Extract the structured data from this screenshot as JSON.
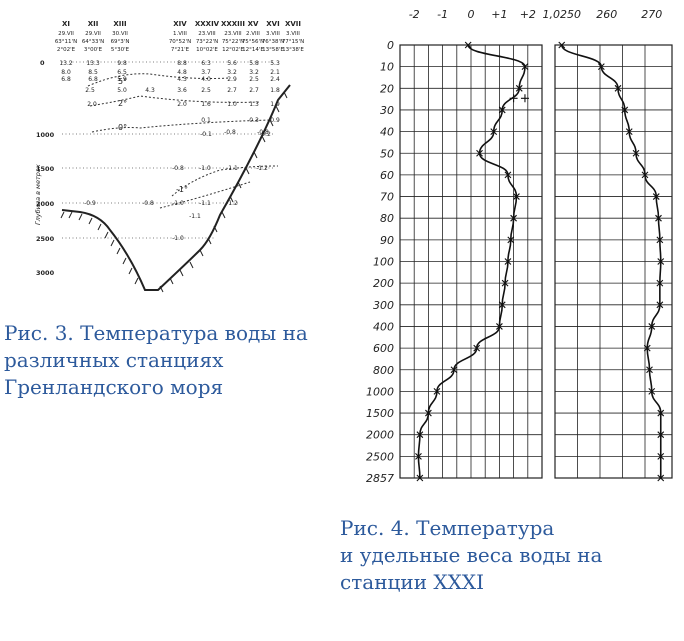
{
  "figure3": {
    "caption_lines": [
      "Рис. 3. Температура воды на",
      "различных станциях",
      "Гренландского моря"
    ],
    "y_axis_label": "Глубина в метрах",
    "depth_ticks": [
      "0",
      "1000",
      "1500",
      "2000",
      "2500",
      "3000"
    ],
    "stations": [
      {
        "num": "XI",
        "date": "29.VII",
        "lat": "63°11'N",
        "lon": "2°02'E"
      },
      {
        "num": "XII",
        "date": "29.VII",
        "lat": "64°33'N",
        "lon": "3°00'E"
      },
      {
        "num": "XIII",
        "date": "30.VII",
        "lat": "69°3'N",
        "lon": "5°30'E"
      },
      {
        "num": "XIV",
        "date": "1.VIII",
        "lat": "70°52'N",
        "lon": "7°21'E"
      },
      {
        "num": "XXXIV",
        "date": "23.VIII",
        "lat": "73°22'N",
        "lon": "10°02'E"
      },
      {
        "num": "XXXIII",
        "date": "23.VIII",
        "lat": "75°22'N",
        "lon": "12°02'E"
      },
      {
        "num": "XV",
        "date": "2.VIII",
        "lat": "75°56'N",
        "lon": "12°14'E"
      },
      {
        "num": "XVI",
        "date": "3.VIII",
        "lat": "76°38'N",
        "lon": "13°58'E"
      },
      {
        "num": "XVII",
        "date": "3.VIII",
        "lat": "77°15'N",
        "lon": "13°38'E"
      }
    ],
    "isotherm_labels": [
      "5°",
      "2°",
      "0°",
      "-1°"
    ],
    "value_rows": [
      [
        "13.2",
        "13.3",
        "9.8",
        "8.8",
        "6.3",
        "5.6",
        "5.8",
        "5.3"
      ],
      [
        "8.0",
        "8.5",
        "6.5",
        "4.8",
        "3.7",
        "3.2",
        "3.2",
        "2.1"
      ],
      [
        "6.8",
        "6.8",
        "5.9",
        "4.3",
        "4.0",
        "2.9",
        "2.5",
        "2.4"
      ],
      [
        "2.5",
        "5.0",
        "4.3",
        "3.6",
        "2.5",
        "2.7",
        "2.7",
        "1.8"
      ],
      [
        "2.0",
        "2.0",
        "1.6",
        "1.0",
        "1.3",
        "1.9"
      ],
      [
        "0.1",
        "0.3",
        "0.9"
      ],
      [
        "-0.1",
        "-0.2"
      ],
      [
        "-0.8",
        "-0.8"
      ],
      [
        "-0.8",
        "-1.0",
        "-1.1",
        "-1.2"
      ],
      [
        "-0.9",
        "-0.8",
        "-1.0",
        "-1.1",
        "-1.2"
      ],
      [
        "-1.1"
      ],
      [
        "-1.0"
      ]
    ]
  },
  "figure4": {
    "caption_lines": [
      "Рис. 4. Температура",
      "и удельные веса воды на",
      "станции XXXI"
    ],
    "temp_axis_labels": [
      "-2",
      "-1",
      "0",
      "+1",
      "+2"
    ],
    "density_axis_labels": [
      "1,0250",
      "260",
      "270"
    ],
    "depth_labels": [
      "0",
      "10",
      "20",
      "30",
      "40",
      "50",
      "60",
      "70",
      "80",
      "90",
      "100",
      "200",
      "300",
      "400",
      "600",
      "800",
      "1000",
      "1500",
      "2000",
      "2500",
      "2857"
    ]
  },
  "chart_data": {
    "type": "line",
    "title": "",
    "xlabel": "",
    "ylabel": "",
    "panels": [
      {
        "x_ticks": [
          -2,
          -1,
          0,
          1,
          2
        ],
        "x_range": [
          -2.5,
          2.5
        ],
        "y_categories": [
          "0",
          "10",
          "20",
          "30",
          "40",
          "50",
          "60",
          "70",
          "80",
          "90",
          "100",
          "200",
          "300",
          "400",
          "600",
          "800",
          "1000",
          "1500",
          "2000",
          "2500",
          "2857"
        ],
        "series": [
          {
            "x": [
              -0.1,
              1.9,
              1.7,
              1.1,
              0.8,
              0.3,
              1.3,
              1.6,
              1.5,
              1.4,
              1.3,
              1.2,
              1.1,
              1.0,
              0.2,
              -0.6,
              -1.2,
              -1.5,
              -1.8,
              -1.85,
              -1.8
            ]
          }
        ],
        "extra_points": [
          {
            "x": 1.5,
            "y": "20"
          },
          {
            "x": 1.9,
            "y": "20"
          }
        ]
      },
      {
        "x_ticks": [
          1.025,
          1.026,
          1.027
        ],
        "x_range": [
          1.02485,
          1.02745
        ],
        "y_categories": [
          "0",
          "10",
          "20",
          "30",
          "40",
          "50",
          "60",
          "70",
          "80",
          "90",
          "100",
          "200",
          "300",
          "400",
          "600",
          "800",
          "1000",
          "1500",
          "2000",
          "2500",
          "2857"
        ],
        "series": [
          {
            "x": [
              1.025,
              1.02588,
              1.02625,
              1.0264,
              1.0265,
              1.02665,
              1.02685,
              1.0271,
              1.02715,
              1.02718,
              1.0272,
              1.02718,
              1.02718,
              1.027,
              1.0269,
              1.02695,
              1.027,
              1.0272,
              1.0272,
              1.0272,
              1.0272
            ]
          }
        ]
      }
    ]
  }
}
